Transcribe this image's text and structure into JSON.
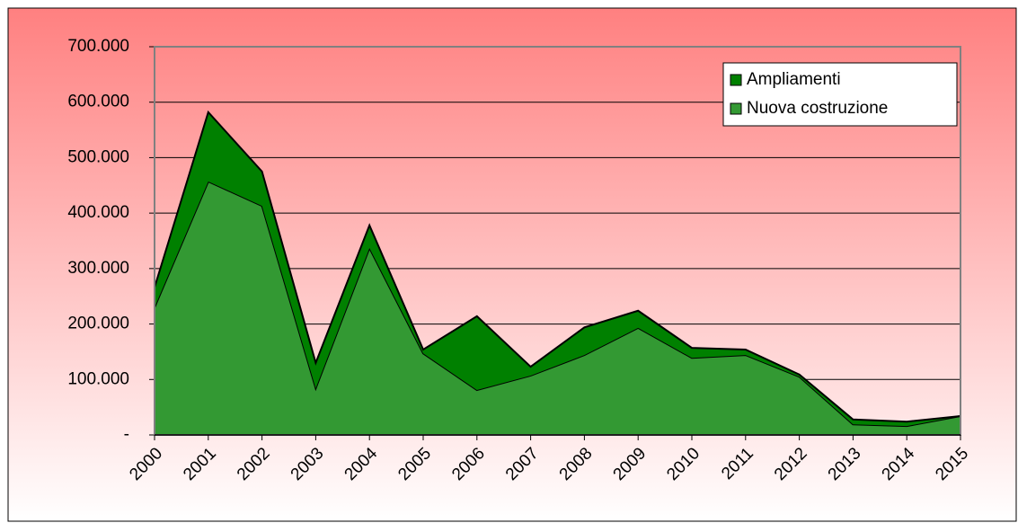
{
  "chart_data": {
    "type": "stacked_area",
    "categories": [
      "2000",
      "2001",
      "2002",
      "2003",
      "2004",
      "2005",
      "2006",
      "2007",
      "2008",
      "2009",
      "2010",
      "2011",
      "2012",
      "2013",
      "2014",
      "2015"
    ],
    "series": [
      {
        "name": "Nuova costruzione",
        "color": "#339933",
        "values": [
          230000,
          457000,
          413000,
          84000,
          337000,
          147000,
          81000,
          107000,
          144000,
          193000,
          139000,
          144000,
          105000,
          19000,
          16000,
          34000
        ]
      },
      {
        "name": "Ampliamenti",
        "color": "#008000",
        "values": [
          36000,
          125000,
          62000,
          46000,
          41000,
          7000,
          133000,
          16000,
          50000,
          31000,
          18000,
          10000,
          4000,
          9000,
          8000,
          0
        ]
      }
    ],
    "ylim": [
      0,
      700000
    ],
    "yticks": [
      {
        "value": 0,
        "label": "-"
      },
      {
        "value": 100000,
        "label": "100.000"
      },
      {
        "value": 200000,
        "label": "200.000"
      },
      {
        "value": 300000,
        "label": "300.000"
      },
      {
        "value": 400000,
        "label": "400.000"
      },
      {
        "value": 500000,
        "label": "500.000"
      },
      {
        "value": 600000,
        "label": "600.000"
      },
      {
        "value": 700000,
        "label": "700.000"
      }
    ],
    "grid": true,
    "legend": "top-right"
  }
}
